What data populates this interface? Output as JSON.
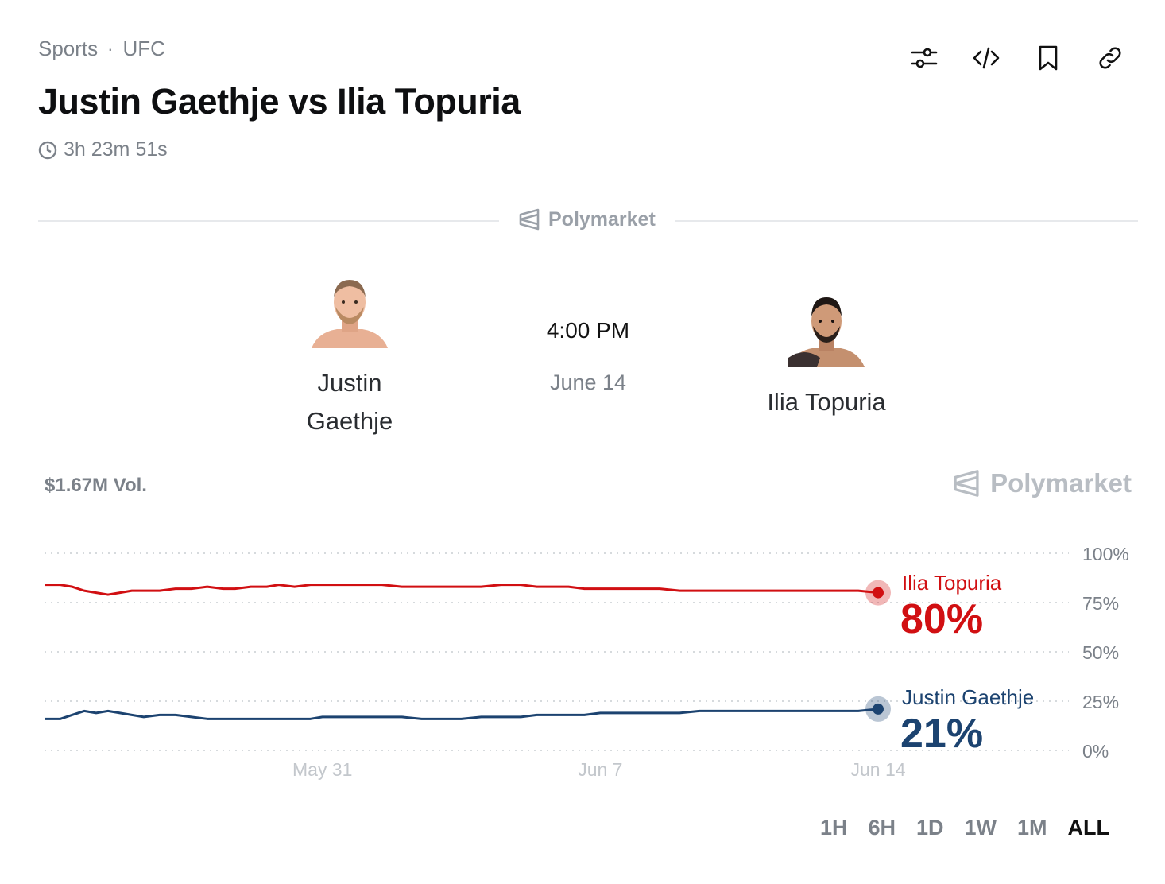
{
  "breadcrumb": {
    "category": "Sports",
    "separator": "·",
    "league": "UFC"
  },
  "title": "Justin Gaethje vs Ilia Topuria",
  "countdown": "3h 23m 51s",
  "brand": "Polymarket",
  "event": {
    "time": "4:00 PM",
    "date": "June 14"
  },
  "fighters": {
    "left": {
      "name_line1": "Justin",
      "name_line2": "Gaethje"
    },
    "right": {
      "name": "Ilia Topuria"
    }
  },
  "volume": "$1.67M Vol.",
  "ranges": [
    "1H",
    "6H",
    "1D",
    "1W",
    "1M",
    "ALL"
  ],
  "active_range": "ALL",
  "icons": [
    "sliders-icon",
    "code-icon",
    "bookmark-icon",
    "link-icon",
    "clock-icon",
    "polymarket-logo-icon"
  ],
  "colors": {
    "topuria": "#d10f12",
    "gaethje": "#1c4370",
    "muted": "#7b8189"
  },
  "chart_data": {
    "type": "line",
    "ylim": [
      0,
      100
    ],
    "yticks": [
      "100%",
      "75%",
      "50%",
      "25%",
      "0%"
    ],
    "xticks": [
      {
        "label": "May 31",
        "pos": 7
      },
      {
        "label": "Jun 7",
        "pos": 14
      },
      {
        "label": "Jun 14",
        "pos": 21
      }
    ],
    "x_range": [
      0,
      21.5
    ],
    "series": [
      {
        "name": "Ilia Topuria",
        "label_value": "80%",
        "color": "#d10f12",
        "x": [
          0,
          0.4,
          0.7,
          1.0,
          1.3,
          1.6,
          1.9,
          2.2,
          2.5,
          2.9,
          3.3,
          3.7,
          4.1,
          4.5,
          4.8,
          5.2,
          5.6,
          5.9,
          6.3,
          6.7,
          7.0,
          7.5,
          8.0,
          8.5,
          9.0,
          9.5,
          10.0,
          10.5,
          11.0,
          11.5,
          12.0,
          12.4,
          12.8,
          13.2,
          13.6,
          14.0,
          14.5,
          15.0,
          15.5,
          16.0,
          16.5,
          17.0,
          17.5,
          18.0,
          18.5,
          19.0,
          19.5,
          20.0,
          20.5,
          21.0
        ],
        "y": [
          84,
          84,
          83,
          81,
          80,
          79,
          80,
          81,
          81,
          81,
          82,
          82,
          83,
          82,
          82,
          83,
          83,
          84,
          83,
          84,
          84,
          84,
          84,
          84,
          83,
          83,
          83,
          83,
          83,
          84,
          84,
          83,
          83,
          83,
          82,
          82,
          82,
          82,
          82,
          81,
          81,
          81,
          81,
          81,
          81,
          81,
          81,
          81,
          81,
          80
        ]
      },
      {
        "name": "Justin Gaethje",
        "label_value": "21%",
        "color": "#1c4370",
        "x": [
          0,
          0.4,
          0.7,
          1.0,
          1.3,
          1.6,
          1.9,
          2.2,
          2.5,
          2.9,
          3.3,
          3.7,
          4.1,
          4.5,
          4.8,
          5.2,
          5.6,
          5.9,
          6.3,
          6.7,
          7.0,
          7.5,
          8.0,
          8.5,
          9.0,
          9.5,
          10.0,
          10.5,
          11.0,
          11.5,
          12.0,
          12.4,
          12.8,
          13.2,
          13.6,
          14.0,
          14.5,
          15.0,
          15.5,
          16.0,
          16.5,
          17.0,
          17.5,
          18.0,
          18.5,
          19.0,
          19.5,
          20.0,
          20.5,
          21.0
        ],
        "y": [
          16,
          16,
          18,
          20,
          19,
          20,
          19,
          18,
          17,
          18,
          18,
          17,
          16,
          16,
          16,
          16,
          16,
          16,
          16,
          16,
          17,
          17,
          17,
          17,
          17,
          16,
          16,
          16,
          17,
          17,
          17,
          18,
          18,
          18,
          18,
          19,
          19,
          19,
          19,
          19,
          20,
          20,
          20,
          20,
          20,
          20,
          20,
          20,
          20,
          21
        ]
      }
    ]
  }
}
